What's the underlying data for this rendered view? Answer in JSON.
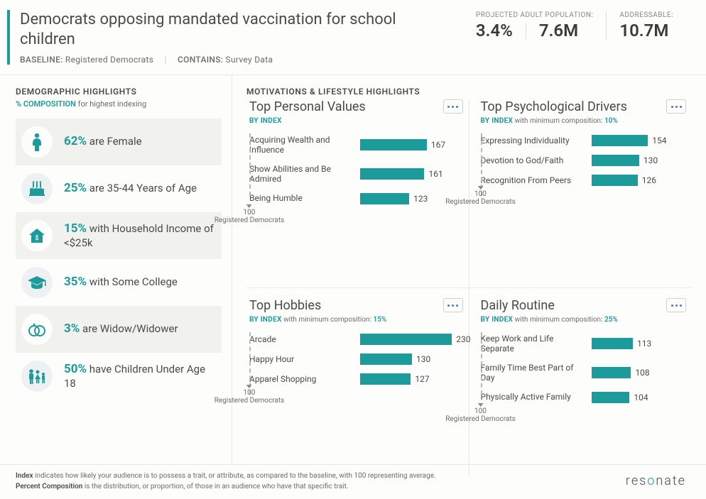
{
  "colors": {
    "accent": "#1d9a9a",
    "text": "#4a4a4a",
    "muted": "#6b6b6b",
    "bg_alt": "#f1f1ee"
  },
  "header": {
    "title": "Democrats opposing mandated vaccination for school children",
    "baseline_label": "BASELINE:",
    "baseline_value": "Registered Democrats",
    "contains_label": "CONTAINS:",
    "contains_value": "Survey Data",
    "stats": {
      "proj_label": "PROJECTED ADULT POPULATION:",
      "proj_pct": "3.4%",
      "proj_count": "7.6M",
      "addr_label": "ADDRESSABLE:",
      "addr_value": "10.7M"
    }
  },
  "demographics": {
    "heading": "DEMOGRAPHIC HIGHLIGHTS",
    "subline_prefix": "% COMPOSITION",
    "subline_rest": " for highest indexing",
    "items": [
      {
        "icon": "female",
        "pct": "62%",
        "text": " are Female"
      },
      {
        "icon": "cake",
        "pct": "25%",
        "text": " are 35-44 Years of Age"
      },
      {
        "icon": "house-dollar",
        "pct": "15%",
        "text": " with Household Income of <$25k"
      },
      {
        "icon": "grad-cap",
        "pct": "35%",
        "text": " with Some College"
      },
      {
        "icon": "rings",
        "pct": "3%",
        "text": " are Widow/Widower"
      },
      {
        "icon": "family",
        "pct": "50%",
        "text": " have Children Under Age 18"
      }
    ]
  },
  "motivations": {
    "heading": "MOTIVATIONS & LIFESTYLE HIGHLIGHTS",
    "baseline_label": "Registered Democrats",
    "baseline_value": 100,
    "max_scale": 250,
    "panels": [
      {
        "title": "Top Personal Values",
        "sub_index": "BY INDEX",
        "sub_rest": "",
        "min_comp": "",
        "bars": [
          {
            "label": "Acquiring Wealth and Influence",
            "value": 167
          },
          {
            "label": "Show Abilities and Be Admired",
            "value": 161
          },
          {
            "label": "Being Humble",
            "value": 123
          }
        ]
      },
      {
        "title": "Top Psychological Drivers",
        "sub_index": "BY INDEX",
        "sub_rest": " with minimum composition: ",
        "min_comp": "10%",
        "bars": [
          {
            "label": "Expressing Individuality",
            "value": 154
          },
          {
            "label": "Devotion to God/Faith",
            "value": 130
          },
          {
            "label": "Recognition From Peers",
            "value": 126
          }
        ]
      },
      {
        "title": "Top Hobbies",
        "sub_index": "BY INDEX",
        "sub_rest": " with minimum composition: ",
        "min_comp": "15%",
        "bars": [
          {
            "label": "Arcade",
            "value": 230
          },
          {
            "label": "Happy Hour",
            "value": 130
          },
          {
            "label": "Apparel Shopping",
            "value": 127
          }
        ]
      },
      {
        "title": "Daily Routine",
        "sub_index": "BY INDEX",
        "sub_rest": " with minimum composition: ",
        "min_comp": "25%",
        "bars": [
          {
            "label": "Keep Work and Life Separate",
            "value": 113
          },
          {
            "label": "Family Time Best Part of Day",
            "value": 108
          },
          {
            "label": "Physically Active Family",
            "value": 104
          }
        ]
      }
    ]
  },
  "footer": {
    "line1_bold": "Index",
    "line1_rest": " indicates how likely your audience is to possess a trait, or attribute, as compared to the baseline, with 100 representing average.",
    "line2_bold": "Percent Composition",
    "line2_rest": " is the distribution, or proportion, of those in an audience who have that specific trait.",
    "brand": "resonate"
  }
}
